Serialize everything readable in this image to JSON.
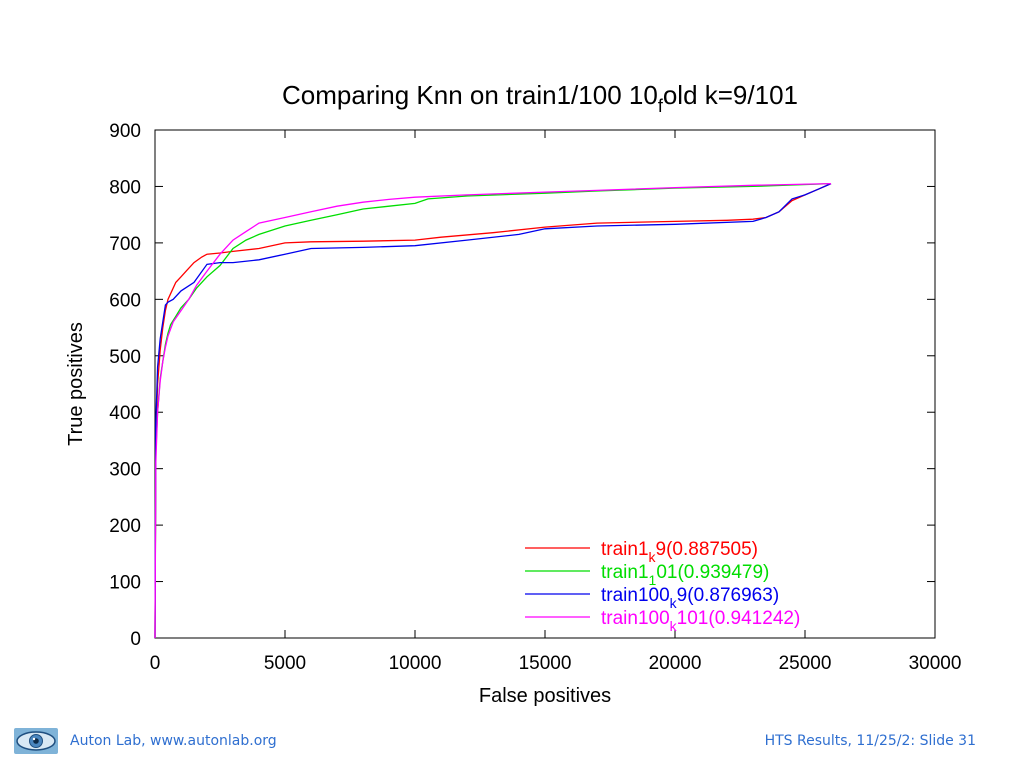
{
  "chart_data": {
    "type": "line",
    "title": "Comparing Knn on train1/100 10",
    "title_sub": "f",
    "title_tail": "old k=9/101",
    "xlabel": "False positives",
    "ylabel": "True positives",
    "xlim": [
      0,
      30000
    ],
    "ylim": [
      0,
      900
    ],
    "xticks": [
      0,
      5000,
      10000,
      15000,
      20000,
      25000,
      30000
    ],
    "yticks": [
      0,
      100,
      200,
      300,
      400,
      500,
      600,
      700,
      800,
      900
    ],
    "grid": false,
    "legend_position": "bottom-right",
    "series": [
      {
        "name": "train1",
        "name_sub": "k",
        "name_tail": "9(0.887505)",
        "color": "#ff0000",
        "x": [
          0,
          30,
          100,
          200,
          300,
          400,
          500,
          600,
          800,
          1000,
          1200,
          1500,
          1800,
          2000,
          2500,
          3000,
          4000,
          5000,
          6000,
          8000,
          10000,
          11000,
          13000,
          15000,
          17000,
          20000,
          22000,
          23000,
          23500,
          24000,
          24500,
          25000,
          25500,
          26000
        ],
        "y": [
          0,
          350,
          450,
          510,
          550,
          580,
          600,
          610,
          630,
          640,
          650,
          665,
          675,
          680,
          682,
          685,
          690,
          700,
          702,
          703,
          705,
          710,
          718,
          728,
          735,
          738,
          740,
          742,
          745,
          755,
          775,
          785,
          795,
          805
        ]
      },
      {
        "name": "train1",
        "name_sub": "1",
        "name_tail": "01(0.939479)",
        "color": "#00dd00",
        "x": [
          0,
          30,
          100,
          200,
          300,
          400,
          500,
          600,
          800,
          1000,
          1300,
          1600,
          2000,
          2500,
          3000,
          3500,
          4000,
          5000,
          6000,
          7000,
          8000,
          9000,
          10000,
          10500,
          12000,
          15000,
          17000,
          20000,
          23000,
          26000
        ],
        "y": [
          0,
          330,
          400,
          460,
          490,
          520,
          540,
          555,
          570,
          585,
          600,
          620,
          640,
          660,
          690,
          705,
          715,
          730,
          740,
          750,
          760,
          765,
          770,
          778,
          783,
          788,
          792,
          797,
          800,
          805
        ]
      },
      {
        "name": "train100",
        "name_sub": "k",
        "name_tail": "9(0.876963)",
        "color": "#0000ee",
        "x": [
          0,
          30,
          100,
          200,
          300,
          400,
          500,
          700,
          1000,
          1500,
          2000,
          2500,
          3000,
          4000,
          5000,
          6000,
          8000,
          10000,
          12000,
          14000,
          15000,
          17000,
          20000,
          23000,
          23500,
          24000,
          24500,
          25000,
          25500,
          26000
        ],
        "y": [
          0,
          380,
          480,
          530,
          560,
          590,
          595,
          600,
          615,
          630,
          662,
          665,
          665,
          670,
          680,
          690,
          692,
          695,
          705,
          715,
          725,
          730,
          733,
          738,
          745,
          755,
          778,
          785,
          795,
          805
        ]
      },
      {
        "name": "train100",
        "name_sub": "k",
        "name_tail": "101(0.941242)",
        "color": "#ff00ff",
        "x": [
          0,
          30,
          100,
          200,
          300,
          400,
          500,
          700,
          1000,
          1300,
          1600,
          2000,
          2500,
          3000,
          3500,
          4000,
          5000,
          6000,
          7000,
          8000,
          9000,
          10000,
          12000,
          15000,
          17000,
          20000,
          23000,
          26000
        ],
        "y": [
          0,
          310,
          400,
          455,
          490,
          515,
          535,
          560,
          580,
          600,
          625,
          650,
          680,
          705,
          720,
          735,
          745,
          755,
          765,
          772,
          777,
          781,
          785,
          790,
          793,
          798,
          802,
          805
        ]
      }
    ]
  },
  "footer": {
    "left_text": "Auton Lab, www.autonlab.org",
    "right_text": "HTS Results, 11/25/2: Slide 31"
  }
}
